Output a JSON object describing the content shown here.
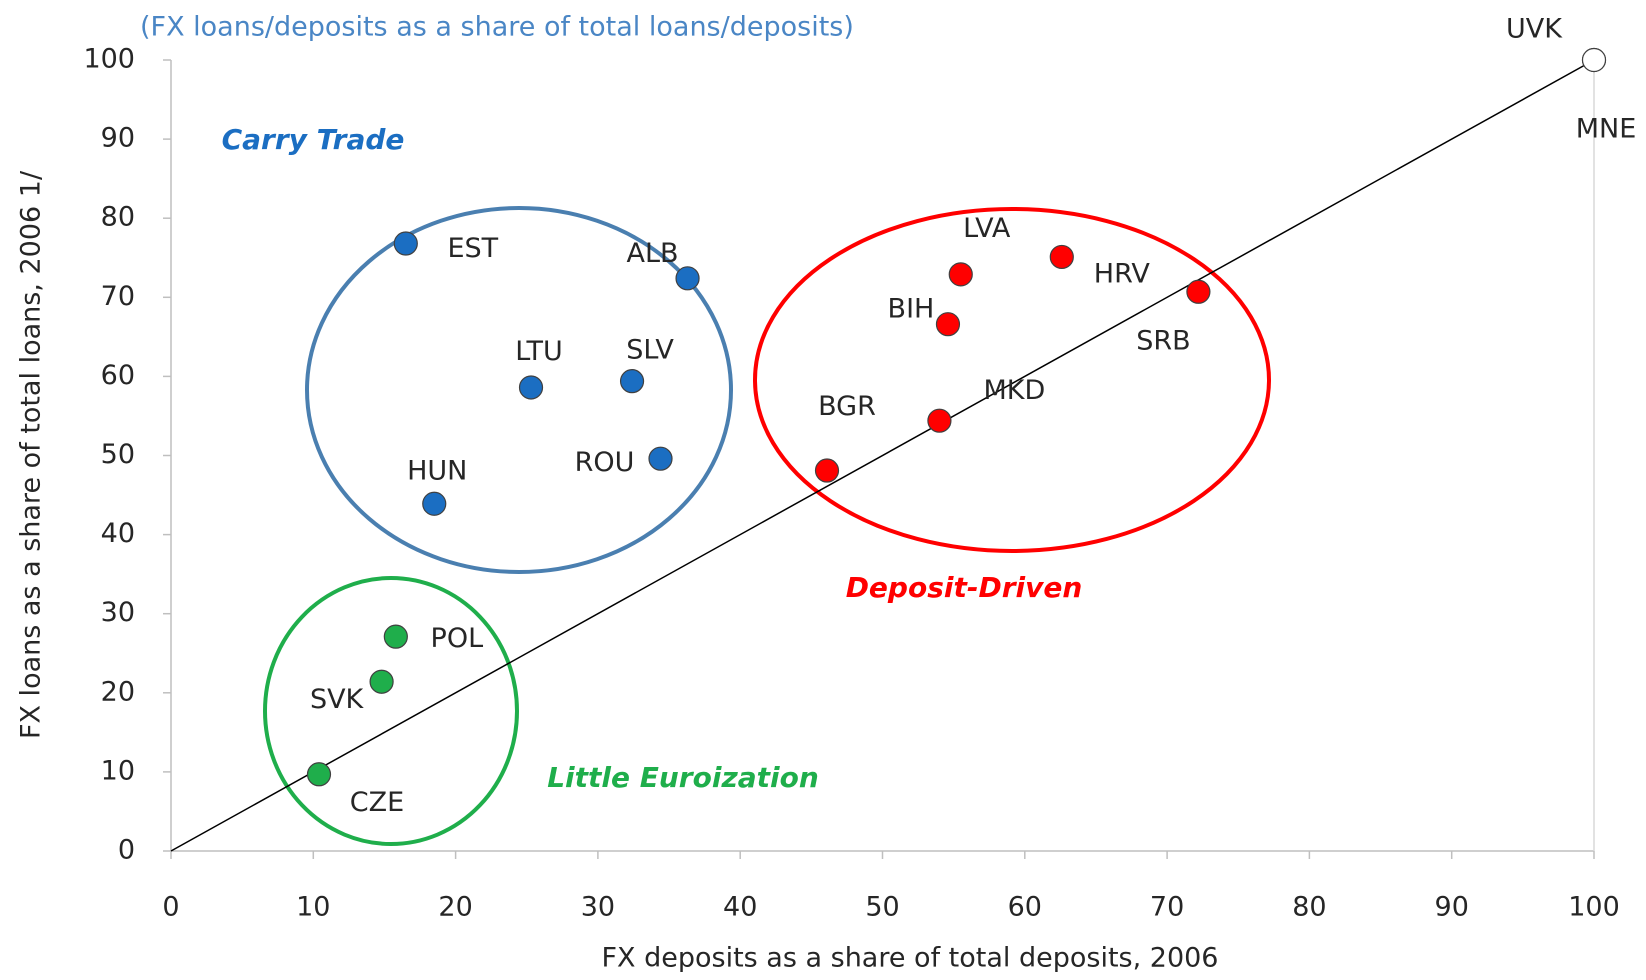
{
  "chart_data": {
    "type": "scatter",
    "subtitle": "(FX loans/deposits as a share of total loans/deposits)",
    "x_label": "FX deposits as a share of total deposits, 2006",
    "y_label": "FX loans as a share of total loans, 2006 1/",
    "xlim": [
      0,
      100
    ],
    "ylim": [
      0,
      100
    ],
    "xticks": [
      0,
      10,
      20,
      30,
      40,
      50,
      60,
      70,
      80,
      90,
      100
    ],
    "yticks": [
      0,
      10,
      20,
      30,
      40,
      50,
      60,
      70,
      80,
      90,
      100
    ],
    "series": [
      {
        "name": "Carry Trade",
        "color": "#1b6ec2",
        "labels": [
          "EST",
          "ALB",
          "LTU",
          "SLV",
          "ROU",
          "HUN"
        ],
        "x": [
          16.5,
          36.3,
          25.3,
          32.4,
          34.4,
          18.5
        ],
        "values": [
          76.8,
          72.4,
          58.6,
          59.4,
          49.6,
          43.9
        ]
      },
      {
        "name": "Deposit-Driven",
        "color": "#ff0000",
        "labels": [
          "LVA",
          "HRV",
          "SRB",
          "BIH",
          "MKD",
          "BGR"
        ],
        "x": [
          55.5,
          62.6,
          72.2,
          54.6,
          54.0,
          46.1
        ],
        "values": [
          72.9,
          75.1,
          70.7,
          66.6,
          54.4,
          48.1
        ]
      },
      {
        "name": "Little Euroization",
        "color": "#1fae4b",
        "labels": [
          "POL",
          "SVK",
          "CZE"
        ],
        "x": [
          15.8,
          14.8,
          10.4
        ],
        "values": [
          27.1,
          21.4,
          9.7
        ]
      },
      {
        "color": "#ffffff",
        "labels": [
          "UVK",
          "MNE"
        ],
        "x": [
          100,
          100
        ],
        "values": [
          100,
          100
        ]
      }
    ]
  }
}
